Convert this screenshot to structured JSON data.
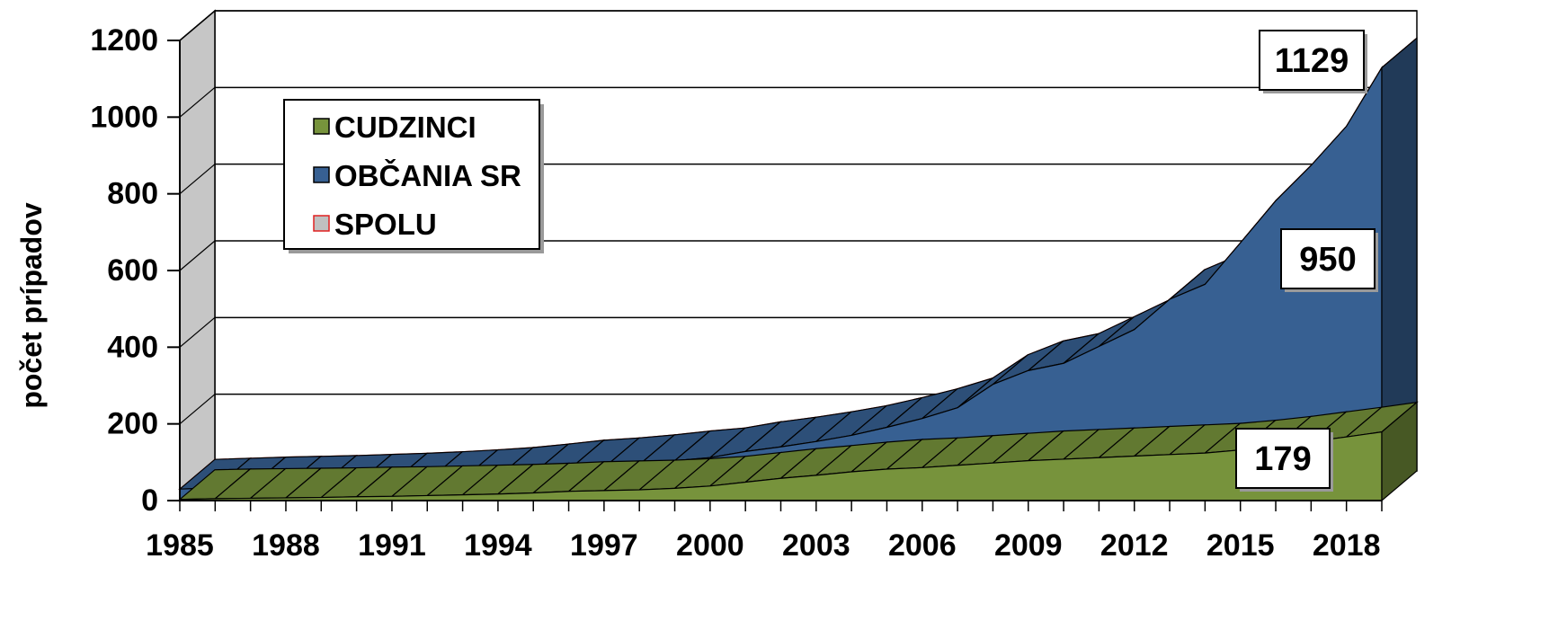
{
  "chart_data": {
    "type": "area",
    "stacked": true,
    "three_d": true,
    "title": "",
    "xlabel": "",
    "ylabel": "počet prípadov",
    "ylim": [
      0,
      1200
    ],
    "yticks": [
      0,
      200,
      400,
      600,
      800,
      1000,
      1200
    ],
    "xtick_labels": [
      "1985",
      "1988",
      "1991",
      "1994",
      "1997",
      "2000",
      "2003",
      "2006",
      "2009",
      "2012",
      "2015",
      "2018"
    ],
    "grid": true,
    "legend_position": "top-left",
    "x": [
      1985,
      1986,
      1987,
      1988,
      1989,
      1990,
      1991,
      1992,
      1993,
      1994,
      1995,
      1996,
      1997,
      1998,
      1999,
      2000,
      2001,
      2002,
      2003,
      2004,
      2005,
      2006,
      2007,
      2008,
      2009,
      2010,
      2011,
      2012,
      2013,
      2014,
      2015,
      2016,
      2017,
      2018,
      2019
    ],
    "series": [
      {
        "name": "CUDZINCI",
        "color": "#77933c",
        "values": [
          3,
          5,
          6,
          7,
          8,
          10,
          11,
          13,
          15,
          17,
          20,
          24,
          26,
          28,
          32,
          38,
          48,
          58,
          66,
          75,
          82,
          86,
          92,
          98,
          104,
          108,
          112,
          116,
          120,
          124,
          132,
          142,
          154,
          166,
          179
        ]
      },
      {
        "name": "OBČANIA SR",
        "color": "#376092",
        "values": [
          27,
          28,
          30,
          31,
          32,
          33,
          35,
          37,
          40,
          44,
          50,
          56,
          60,
          66,
          72,
          74,
          80,
          82,
          88,
          95,
          109,
          128,
          150,
          205,
          235,
          250,
          290,
          330,
          405,
          440,
          540,
          640,
          720,
          810,
          950
        ]
      },
      {
        "name": "SPOLU",
        "color": "#c0c0c0",
        "edge_color": "#e02020",
        "values": [
          30,
          33,
          36,
          38,
          40,
          43,
          46,
          50,
          55,
          61,
          70,
          80,
          86,
          94,
          104,
          112,
          128,
          140,
          154,
          170,
          191,
          214,
          242,
          303,
          339,
          358,
          402,
          446,
          525,
          564,
          672,
          782,
          874,
          976,
          1129
        ]
      }
    ],
    "callouts": [
      {
        "text": "1129",
        "series": "SPOLU"
      },
      {
        "text": "950",
        "series": "OBČANIA SR"
      },
      {
        "text": "179",
        "series": "CUDZINCI"
      }
    ]
  }
}
